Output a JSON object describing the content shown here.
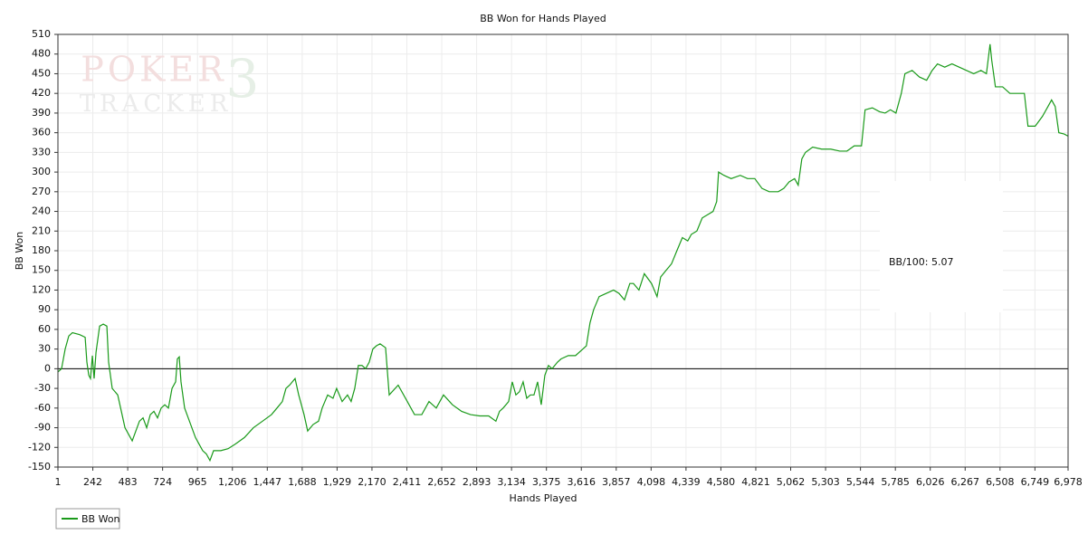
{
  "chart_data": {
    "type": "line",
    "title": "BB Won for Hands Played",
    "xlabel": "Hands Played",
    "ylabel": "BB Won",
    "annotation": "BB/100: 5.07",
    "watermark": {
      "top": "POKER",
      "bottom": "TRACKER",
      "mark": "3"
    },
    "xlim": [
      1,
      6978
    ],
    "ylim": [
      -150,
      510
    ],
    "xticks": [
      1,
      242,
      483,
      724,
      965,
      {
        "value": 1206,
        "label": "1,206"
      },
      {
        "value": 1447,
        "label": "1,447"
      },
      {
        "value": 1688,
        "label": "1,688"
      },
      {
        "value": 1929,
        "label": "1,929"
      },
      {
        "value": 2170,
        "label": "2,170"
      },
      {
        "value": 2411,
        "label": "2,411"
      },
      {
        "value": 2652,
        "label": "2,652"
      },
      {
        "value": 2893,
        "label": "2,893"
      },
      {
        "value": 3134,
        "label": "3,134"
      },
      {
        "value": 3375,
        "label": "3,375"
      },
      {
        "value": 3616,
        "label": "3,616"
      },
      {
        "value": 3857,
        "label": "3,857"
      },
      {
        "value": 4098,
        "label": "4,098"
      },
      {
        "value": 4339,
        "label": "4,339"
      },
      {
        "value": 4580,
        "label": "4,580"
      },
      {
        "value": 4821,
        "label": "4,821"
      },
      {
        "value": 5062,
        "label": "5,062"
      },
      {
        "value": 5303,
        "label": "5,303"
      },
      {
        "value": 5544,
        "label": "5,544"
      },
      {
        "value": 5785,
        "label": "5,785"
      },
      {
        "value": 6026,
        "label": "6,026"
      },
      {
        "value": 6267,
        "label": "6,267"
      },
      {
        "value": 6508,
        "label": "6,508"
      },
      {
        "value": 6749,
        "label": "6,749"
      },
      {
        "value": 6978,
        "label": "6,978"
      }
    ],
    "yticks": [
      -150,
      -120,
      -90,
      -60,
      -30,
      0,
      30,
      60,
      90,
      120,
      150,
      180,
      210,
      240,
      270,
      300,
      330,
      360,
      390,
      420,
      450,
      480,
      510
    ],
    "grid": true,
    "legend": "bottom-left",
    "x": [
      1,
      26,
      51,
      76,
      101,
      151,
      189,
      201,
      214,
      226,
      239,
      251,
      264,
      289,
      314,
      339,
      351,
      376,
      414,
      439,
      464,
      489,
      514,
      539,
      564,
      589,
      614,
      639,
      664,
      689,
      714,
      739,
      764,
      789,
      814,
      826,
      839,
      851,
      876,
      901,
      926,
      951,
      976,
      1001,
      1026,
      1051,
      1076,
      1126,
      1176,
      1226,
      1289,
      1351,
      1414,
      1476,
      1514,
      1551,
      1576,
      1601,
      1639,
      1664,
      1701,
      1726,
      1764,
      1801,
      1826,
      1864,
      1901,
      1926,
      1964,
      2001,
      2026,
      2051,
      2076,
      2101,
      2126,
      2151,
      2176,
      2201,
      2226,
      2264,
      2289,
      2351,
      2414,
      2464,
      2514,
      2564,
      2614,
      2664,
      2726,
      2789,
      2851,
      2914,
      2976,
      3026,
      3051,
      3076,
      3114,
      3139,
      3164,
      3189,
      3214,
      3239,
      3264,
      3289,
      3314,
      3339,
      3364,
      3389,
      3414,
      3451,
      3476,
      3526,
      3576,
      3626,
      3651,
      3676,
      3701,
      3739,
      3789,
      3839,
      3876,
      3914,
      3951,
      3976,
      4014,
      4051,
      4101,
      4139,
      4164,
      4201,
      4239,
      4276,
      4314,
      4351,
      4376,
      4414,
      4451,
      4489,
      4526,
      4551,
      4564,
      4601,
      4651,
      4714,
      4764,
      4814,
      4864,
      4914,
      4976,
      5014,
      5051,
      5089,
      5114,
      5139,
      5164,
      5214,
      5276,
      5339,
      5401,
      5451,
      5501,
      5551,
      5576,
      5626,
      5676,
      5714,
      5751,
      5789,
      5826,
      5851,
      5901,
      5951,
      6001,
      6039,
      6076,
      6126,
      6176,
      6226,
      6276,
      6326,
      6376,
      6414,
      6439,
      6451,
      6476,
      6526,
      6576,
      6626,
      6676,
      6701,
      6751,
      6801,
      6839,
      6864,
      6889,
      6914,
      6951,
      6976
    ],
    "series": [
      {
        "name": "BB Won",
        "color": "#1a9a1a",
        "values": [
          -5,
          0,
          30,
          50,
          55,
          52,
          48,
          10,
          -10,
          -15,
          20,
          -15,
          25,
          65,
          68,
          65,
          10,
          -30,
          -40,
          -65,
          -90,
          -100,
          -110,
          -95,
          -80,
          -75,
          -90,
          -70,
          -65,
          -75,
          -60,
          -55,
          -60,
          -30,
          -20,
          15,
          18,
          -20,
          -60,
          -75,
          -90,
          -105,
          -115,
          -125,
          -130,
          -140,
          -125,
          -125,
          -122,
          -115,
          -105,
          -90,
          -80,
          -70,
          -60,
          -50,
          -30,
          -25,
          -15,
          -40,
          -70,
          -95,
          -85,
          -80,
          -60,
          -40,
          -45,
          -30,
          -50,
          -40,
          -50,
          -30,
          5,
          5,
          0,
          10,
          30,
          35,
          38,
          32,
          -40,
          -25,
          -50,
          -70,
          -70,
          -50,
          -60,
          -40,
          -55,
          -65,
          -70,
          -72,
          -72,
          -80,
          -65,
          -60,
          -50,
          -20,
          -40,
          -35,
          -20,
          -45,
          -40,
          -40,
          -20,
          -55,
          -10,
          5,
          0,
          10,
          15,
          20,
          20,
          30,
          35,
          70,
          90,
          110,
          115,
          120,
          115,
          105,
          130,
          130,
          120,
          145,
          130,
          110,
          140,
          150,
          160,
          180,
          200,
          195,
          205,
          210,
          230,
          235,
          240,
          255,
          300,
          295,
          290,
          295,
          290,
          290,
          275,
          270,
          270,
          275,
          285,
          290,
          280,
          320,
          330,
          338,
          335,
          335,
          332,
          332,
          340,
          340,
          395,
          398,
          392,
          390,
          395,
          390,
          420,
          450,
          455,
          445,
          440,
          455,
          465,
          460,
          465,
          460,
          455,
          450,
          455,
          450,
          495,
          470,
          430,
          430,
          420,
          420,
          420,
          370,
          370,
          385,
          400,
          410,
          400,
          360,
          358,
          355
        ]
      }
    ]
  }
}
